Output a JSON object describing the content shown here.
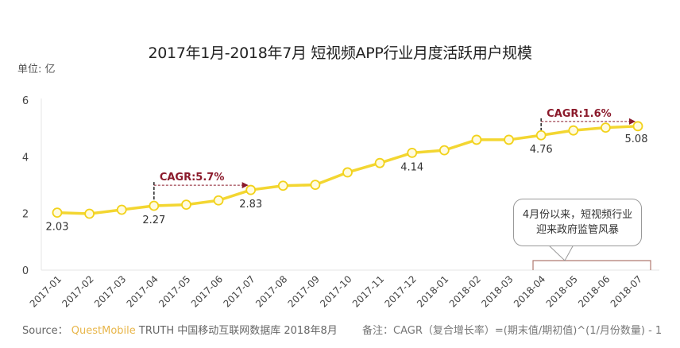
{
  "title": "2017年1月-2018年7月 短视频APP行业月度活跃用户规模",
  "unit_label": "单位: 亿",
  "footer": {
    "source_prefix": "Source：",
    "source_brand": "QuestMobile",
    "source_rest": "TRUTH 中国移动互联网数据库 2018年8月",
    "note": "备注：CAGR（复合增长率）=(期末值/期初值)^(1/月份数量) - 1"
  },
  "callout": {
    "line1": "4月份以来，短视频行业",
    "line2": "迎来政府监管风暴"
  },
  "colors": {
    "line": "#f2d21b",
    "marker_fill": "#fffbe0",
    "cagr_text": "#8b1a2b",
    "cagr_arrow": "#8b1a2b",
    "axis": "#e6e6e6",
    "brand": "#e8b64a"
  },
  "chart_data": {
    "type": "line",
    "title": "2017年1月-2018年7月 短视频APP行业月度活跃用户规模",
    "xlabel": "",
    "ylabel": "单位: 亿",
    "ylim": [
      0,
      6
    ],
    "yticks": [
      0,
      2,
      4,
      6
    ],
    "grid": false,
    "legend": null,
    "categories": [
      "2017-01",
      "2017-02",
      "2017-03",
      "2017-04",
      "2017-05",
      "2017-06",
      "2017-07",
      "2017-08",
      "2017-09",
      "2017-10",
      "2017-11",
      "2017-12",
      "2018-01",
      "2018-02",
      "2018-03",
      "2018-04",
      "2018-05",
      "2018-06",
      "2018-07"
    ],
    "series": [
      {
        "name": "短视频APP行业月度活跃用户规模",
        "values": [
          2.03,
          1.99,
          2.13,
          2.27,
          2.31,
          2.46,
          2.83,
          2.98,
          3.01,
          3.45,
          3.78,
          4.14,
          4.23,
          4.6,
          4.6,
          4.76,
          4.93,
          5.03,
          5.08
        ]
      }
    ],
    "data_labels": [
      {
        "category": "2017-01",
        "text": "2.03"
      },
      {
        "category": "2017-04",
        "text": "2.27"
      },
      {
        "category": "2017-07",
        "text": "2.83"
      },
      {
        "category": "2017-12",
        "text": "4.14"
      },
      {
        "category": "2018-04",
        "text": "4.76"
      },
      {
        "category": "2018-07",
        "text": "5.08"
      }
    ],
    "annotations": [
      {
        "text": "CAGR:5.7%",
        "from": "2017-04",
        "to": "2017-07"
      },
      {
        "text": "CAGR:1.6%",
        "from": "2018-04",
        "to": "2018-07"
      },
      {
        "text": "4月份以来，短视频行业迎来政府监管风暴",
        "span": [
          "2018-04",
          "2018-07"
        ]
      }
    ]
  }
}
